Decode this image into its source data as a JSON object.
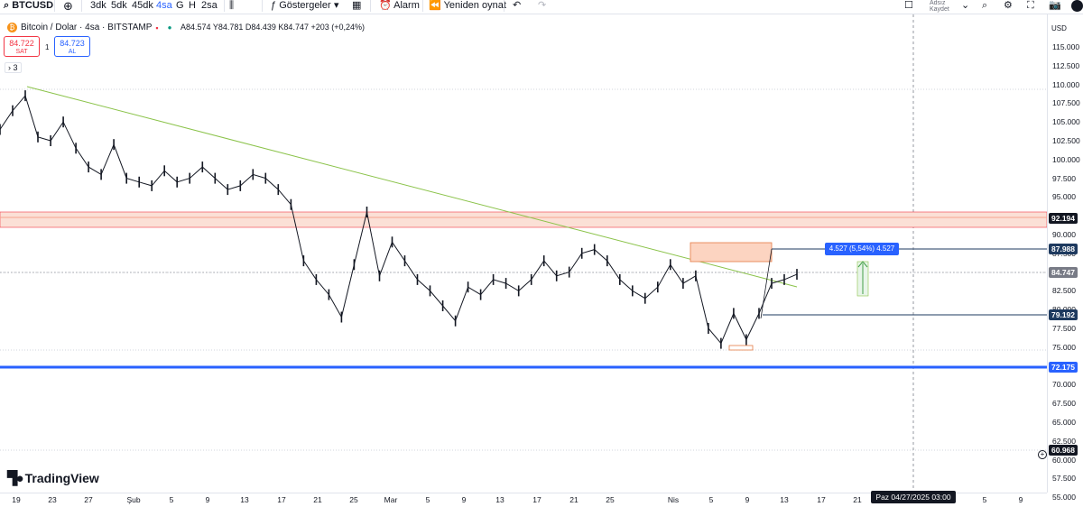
{
  "toolbar": {
    "symbol": "BTCUSD",
    "intervals": [
      "3dk",
      "5dk",
      "45dk",
      "4sa",
      "G",
      "H",
      "2sa"
    ],
    "active_interval": "4sa",
    "indicators_label": "Göstergeler",
    "alarm_label": "Alarm",
    "replay_label": "Yeniden oynat",
    "layout_name": "Adsız",
    "save_label": "Kaydet"
  },
  "legend": {
    "title": "Bitcoin / Dolar · 4sa · BITSTAMP",
    "ohlc": "A84.574 Y84.781 D84.439 K84.747 +203 (+0,24%)",
    "sell_price": "84.722",
    "sell_label": "SAT",
    "buy_price": "84.723",
    "buy_label": "AL",
    "spread": "1",
    "indicator_count": "3"
  },
  "price_axis": {
    "currency": "USD",
    "ticks": [
      "115.000",
      "112.500",
      "110.000",
      "107.500",
      "105.000",
      "102.500",
      "100.000",
      "97.500",
      "95.000",
      "92.500",
      "90.000",
      "87.500",
      "85.000",
      "82.500",
      "80.000",
      "77.500",
      "75.000",
      "72.500",
      "70.000",
      "67.500",
      "65.000",
      "62.500",
      "60.000",
      "57.500",
      "55.000"
    ],
    "labels": [
      {
        "text": "92.194",
        "color": "#131722"
      },
      {
        "text": "87.988",
        "color": "#1e3a5f"
      },
      {
        "text": "84.747",
        "color": "#787b86"
      },
      {
        "text": "79.192",
        "color": "#1e3a5f"
      },
      {
        "text": "72.175",
        "color": "#2962ff"
      },
      {
        "text": "60.968",
        "color": "#131722"
      }
    ]
  },
  "time_axis": {
    "ticks": [
      "19",
      "23",
      "27",
      "Şub",
      "5",
      "9",
      "13",
      "17",
      "21",
      "25",
      "Mar",
      "5",
      "9",
      "13",
      "17",
      "21",
      "25",
      "Nis",
      "5",
      "9",
      "13",
      "17",
      "21",
      "5",
      "9"
    ],
    "crosshair": "Paz 04/27/2025   03:00"
  },
  "measure": {
    "label": "4.527 (5,54%) 4.527"
  },
  "brand": "TradingView",
  "colors": {
    "up": "#131722",
    "down": "#131722",
    "trendline": "#a5d6a7",
    "zone_red": "#f7d3c8",
    "support_blue": "#2962ff",
    "accent": "#2962ff"
  },
  "chart_data": {
    "type": "line",
    "series": [
      {
        "values": [
          104000,
          106500,
          108500,
          103000,
          102500,
          105000,
          101500,
          99000,
          98000,
          102000,
          97500,
          97000,
          96500,
          98500,
          97000,
          97500,
          99000,
          97500,
          96000,
          96500,
          98000,
          97500,
          96000,
          94000,
          86500,
          84000,
          82000,
          79000,
          86000,
          93000,
          84500,
          89000,
          86500,
          84000,
          82500,
          80500,
          78500,
          83000,
          82000,
          84000,
          83500,
          82500,
          84000,
          86500,
          84500,
          85000,
          87500,
          88000,
          86500,
          84000,
          82500,
          81500,
          83000,
          86000,
          83500,
          84500,
          77500,
          75500,
          79500,
          76000,
          79500,
          83500,
          84000,
          84700
        ]
      }
    ],
    "ylim": [
      55000,
      117500
    ]
  }
}
